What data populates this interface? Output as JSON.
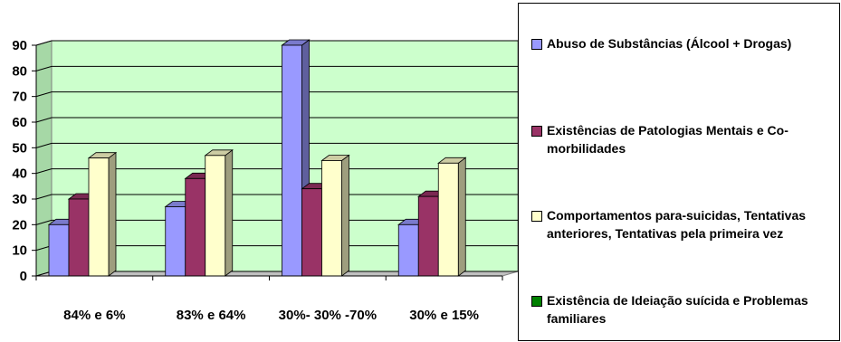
{
  "chart_data": {
    "type": "bar",
    "categories": [
      "84% e 6%",
      "83% e 64%",
      "30%- 30% -70%",
      "30% e 15%"
    ],
    "series": [
      {
        "name": "Abuso de Substâncias (Álcool + Drogas)",
        "color": "#9999ff",
        "values": [
          20,
          27,
          90,
          20
        ]
      },
      {
        "name": "Existências de Patologias Mentais e Co-morbilidades",
        "color": "#993366",
        "values": [
          30,
          38,
          34,
          31
        ]
      },
      {
        "name": "Comportamentos para-suicidas, Tentativas anteriores, Tentativas pela primeira vez",
        "color": "#ffffcc",
        "values": [
          46,
          47,
          45,
          44
        ]
      },
      {
        "name": "Existência de Ideiação suícida e Problemas familiares",
        "color": "#008000",
        "values": [
          0,
          0,
          0,
          0
        ]
      }
    ],
    "ylim": [
      0,
      90
    ],
    "yticks": [
      "0",
      "10",
      "20",
      "30",
      "40",
      "50",
      "60",
      "70",
      "80",
      "90"
    ],
    "grid": true,
    "plot_background": "#ccffcc",
    "legend_position": "right",
    "title": "",
    "xlabel": "",
    "ylabel": ""
  },
  "legend": {
    "items": [
      {
        "label_lines": [
          "Abuso de Substâncias (Álcool + Drogas)"
        ],
        "color": "#9999ff"
      },
      {
        "label_lines": [
          "Existências de Patologias Mentais e Co-",
          "morbilidades"
        ],
        "color": "#993366"
      },
      {
        "label_lines": [
          "Comportamentos para-suicidas, Tentativas",
          "anteriores, Tentativas pela primeira vez"
        ],
        "color": "#ffffcc"
      },
      {
        "label_lines": [
          "Existência de Ideiação suícida e Problemas",
          "familiares"
        ],
        "color": "#008000"
      }
    ]
  }
}
